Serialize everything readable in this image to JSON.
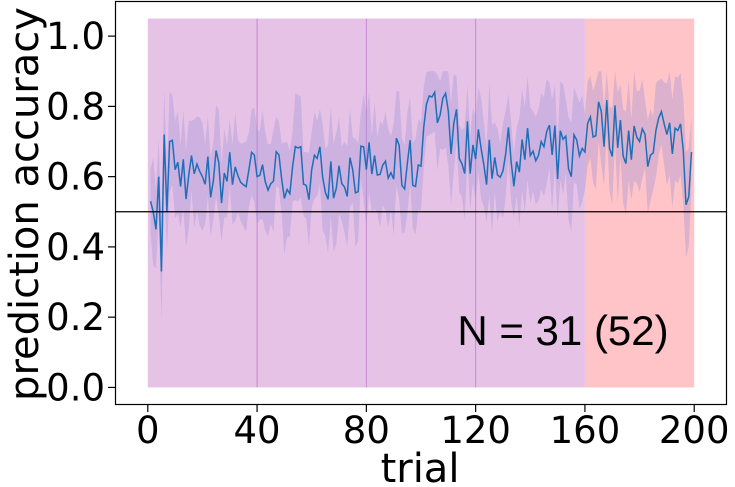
{
  "chart_data": {
    "type": "line",
    "xlabel": "trial",
    "ylabel": "prediction accuracy",
    "xlim": [
      -12,
      212
    ],
    "ylim": [
      -0.05,
      1.1
    ],
    "xticks": [
      0,
      40,
      80,
      120,
      160,
      200
    ],
    "xtick_labels": [
      "0",
      "40",
      "80",
      "120",
      "160",
      "200"
    ],
    "yticks": [
      0.0,
      0.2,
      0.4,
      0.6,
      0.8,
      1.0
    ],
    "ytick_labels": [
      "0.0",
      "0.2",
      "0.4",
      "0.6",
      "0.8",
      "1.0"
    ],
    "grid": false,
    "reference_line": {
      "y": 0.5,
      "color": "#000000"
    },
    "blocks": [
      {
        "x0": 0,
        "x1": 160,
        "y0": 0.0,
        "y1": 1.05,
        "color": "#e6c3e6",
        "dividers": [
          40,
          80,
          120
        ]
      },
      {
        "x0": 160,
        "x1": 200,
        "y0": 0.0,
        "y1": 1.05,
        "color": "#ffc4c8"
      }
    ],
    "annotation": "N = 31 (52)",
    "line_color": "#1f6fb8",
    "band_color": "#9b8fd6",
    "series_keypoints": {
      "x": [
        1,
        2,
        3,
        4,
        5,
        6,
        7,
        8,
        10,
        20,
        40,
        60,
        80,
        100,
        103,
        120,
        140,
        160,
        162,
        180,
        190,
        195,
        197,
        199
      ],
      "y": [
        0.53,
        0.5,
        0.45,
        0.6,
        0.33,
        0.72,
        0.5,
        0.7,
        0.62,
        0.6,
        0.6,
        0.62,
        0.62,
        0.63,
        0.83,
        0.65,
        0.66,
        0.67,
        0.77,
        0.7,
        0.72,
        0.75,
        0.52,
        0.67
      ]
    }
  }
}
